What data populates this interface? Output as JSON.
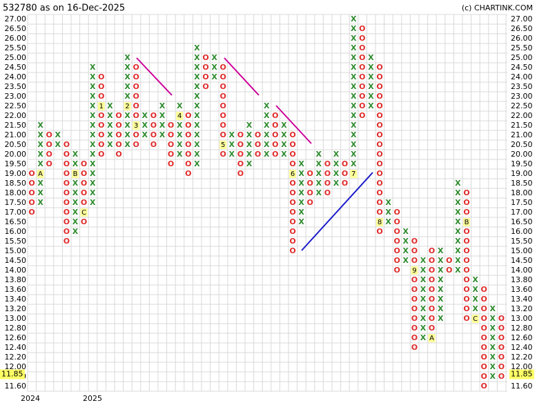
{
  "chart_data": {
    "type": "point-and-figure",
    "title": "532780 as on 16-Dec-2025",
    "credit": "(c) CHARTINK.COM",
    "x_labels": [
      "2024",
      "2025"
    ],
    "last_price": {
      "value": 11.85,
      "label": "11.85"
    },
    "yticks": [
      {
        "value": 27,
        "label": "27.00"
      },
      {
        "value": 26.5,
        "label": "26.50"
      },
      {
        "value": 26,
        "label": "26.00"
      },
      {
        "value": 25.5,
        "label": "25.50"
      },
      {
        "value": 25,
        "label": "25.00"
      },
      {
        "value": 24.5,
        "label": "24.50"
      },
      {
        "value": 24,
        "label": "24.00"
      },
      {
        "value": 23.5,
        "label": "23.50"
      },
      {
        "value": 23,
        "label": "23.00"
      },
      {
        "value": 22.5,
        "label": "22.50"
      },
      {
        "value": 22,
        "label": "22.00"
      },
      {
        "value": 21.5,
        "label": "21.50"
      },
      {
        "value": 21,
        "label": "21.00"
      },
      {
        "value": 20.5,
        "label": "20.50"
      },
      {
        "value": 20,
        "label": "20.00"
      },
      {
        "value": 19.5,
        "label": "19.50"
      },
      {
        "value": 19,
        "label": "19.00"
      },
      {
        "value": 18.5,
        "label": "18.50"
      },
      {
        "value": 18,
        "label": "18.00"
      },
      {
        "value": 17.5,
        "label": "17.50"
      },
      {
        "value": 17,
        "label": "17.00"
      },
      {
        "value": 16.5,
        "label": "16.50"
      },
      {
        "value": 16,
        "label": "16.00"
      },
      {
        "value": 15.5,
        "label": "15.50"
      },
      {
        "value": 15,
        "label": "15.00"
      },
      {
        "value": 14.5,
        "label": "14.50"
      },
      {
        "value": 14,
        "label": "14.00"
      },
      {
        "value": 13.8,
        "label": "13.80"
      },
      {
        "value": 13.6,
        "label": "13.60"
      },
      {
        "value": 13.4,
        "label": "13.40"
      },
      {
        "value": 13.2,
        "label": "13.20"
      },
      {
        "value": 13,
        "label": "13.00"
      },
      {
        "value": 12.8,
        "label": "12.80"
      },
      {
        "value": 12.6,
        "label": "12.60"
      },
      {
        "value": 12.4,
        "label": "12.40"
      },
      {
        "value": 12.2,
        "label": "12.20"
      },
      {
        "value": 12,
        "label": "12.00"
      },
      {
        "value": 11.8,
        "label": "11.80"
      },
      {
        "value": 11.6,
        "label": "11.60"
      }
    ],
    "x_color": "#2e8b2e",
    "o_color": "#e02a2a",
    "columns": [
      {
        "type": "O",
        "top": 19,
        "bottom": 17
      },
      {
        "type": "X",
        "top": 21.5,
        "bottom": 17.5,
        "marker": {
          "label": "A",
          "value": 19
        }
      },
      {
        "type": "O",
        "top": 21,
        "bottom": 19.5
      },
      {
        "type": "X",
        "top": 21,
        "bottom": 20.5
      },
      {
        "type": "O",
        "top": 20.5,
        "bottom": 15.5
      },
      {
        "type": "X",
        "top": 20,
        "bottom": 16,
        "marker": {
          "label": "B",
          "value": 19
        }
      },
      {
        "type": "O",
        "top": 19.5,
        "bottom": 16.5,
        "marker": {
          "label": "C",
          "value": 17
        }
      },
      {
        "type": "X",
        "top": 24.5,
        "bottom": 17.5
      },
      {
        "type": "O",
        "top": 24,
        "bottom": 20,
        "marker": {
          "label": "1",
          "value": 22.5
        }
      },
      {
        "type": "X",
        "top": 22.5,
        "bottom": 20.5
      },
      {
        "type": "O",
        "top": 22,
        "bottom": 20
      },
      {
        "type": "X",
        "top": 25,
        "bottom": 20.5,
        "marker": {
          "label": "2",
          "value": 22.5
        }
      },
      {
        "type": "O",
        "top": 24.5,
        "bottom": 20.5,
        "marker": {
          "label": "3",
          "value": 21.5
        }
      },
      {
        "type": "X",
        "top": 22,
        "bottom": 21
      },
      {
        "type": "O",
        "top": 22,
        "bottom": 20.5
      },
      {
        "type": "X",
        "top": 22.5,
        "bottom": 21
      },
      {
        "type": "O",
        "top": 21.5,
        "bottom": 19.5
      },
      {
        "type": "X",
        "top": 22.5,
        "bottom": 20,
        "marker": {
          "label": "4",
          "value": 22
        }
      },
      {
        "type": "O",
        "top": 22,
        "bottom": 19
      },
      {
        "type": "X",
        "top": 25.5,
        "bottom": 19.5
      },
      {
        "type": "O",
        "top": 25,
        "bottom": 23.5
      },
      {
        "type": "X",
        "top": 25,
        "bottom": 24
      },
      {
        "type": "O",
        "top": 24.5,
        "bottom": 20,
        "marker": {
          "label": "5",
          "value": 20.5
        }
      },
      {
        "type": "X",
        "top": 21,
        "bottom": 20
      },
      {
        "type": "O",
        "top": 21,
        "bottom": 19
      },
      {
        "type": "X",
        "top": 21.5,
        "bottom": 19.5
      },
      {
        "type": "O",
        "top": 21,
        "bottom": 20
      },
      {
        "type": "X",
        "top": 22.5,
        "bottom": 20
      },
      {
        "type": "O",
        "top": 22,
        "bottom": 20
      },
      {
        "type": "X",
        "top": 21.5,
        "bottom": 20
      },
      {
        "type": "O",
        "top": 21,
        "bottom": 15,
        "marker": {
          "label": "6",
          "value": 19
        }
      },
      {
        "type": "X",
        "top": 19.5,
        "bottom": 16.5
      },
      {
        "type": "O",
        "top": 19,
        "bottom": 17.5
      },
      {
        "type": "X",
        "top": 20,
        "bottom": 18
      },
      {
        "type": "O",
        "top": 19.5,
        "bottom": 18
      },
      {
        "type": "X",
        "top": 20,
        "bottom": 18.5
      },
      {
        "type": "O",
        "top": 19.5,
        "bottom": 18.5
      },
      {
        "type": "X",
        "top": 27,
        "bottom": 19,
        "marker": {
          "label": "7",
          "value": 19
        }
      },
      {
        "type": "O",
        "top": 26.5,
        "bottom": 22
      },
      {
        "type": "X",
        "top": 25,
        "bottom": 22.5
      },
      {
        "type": "O",
        "top": 24.5,
        "bottom": 16,
        "marker": {
          "label": "8",
          "value": 16.5
        }
      },
      {
        "type": "X",
        "top": 17.5,
        "bottom": 16.5
      },
      {
        "type": "O",
        "top": 17,
        "bottom": 14
      },
      {
        "type": "X",
        "top": 16,
        "bottom": 14.5
      },
      {
        "type": "O",
        "top": 15.5,
        "bottom": 12.4,
        "marker": {
          "label": "9",
          "value": 14
        }
      },
      {
        "type": "X",
        "top": 14.5,
        "bottom": 12.6
      },
      {
        "type": "O",
        "top": 15,
        "bottom": 12.6,
        "marker": {
          "label": "A",
          "value": 12.6
        }
      },
      {
        "type": "X",
        "top": 15,
        "bottom": 13
      },
      {
        "type": "O",
        "top": 14.5,
        "bottom": 14
      },
      {
        "type": "X",
        "top": 18.5,
        "bottom": 14
      },
      {
        "type": "O",
        "top": 18,
        "bottom": 13,
        "marker": {
          "label": "B",
          "value": 16.5
        }
      },
      {
        "type": "X",
        "top": 13.8,
        "bottom": 13,
        "marker": {
          "label": "C",
          "value": 13
        }
      },
      {
        "type": "O",
        "top": 13.6,
        "bottom": 11.6
      },
      {
        "type": "X",
        "top": 13.2,
        "bottom": 11.8
      },
      {
        "type": "O",
        "top": 13,
        "bottom": 11.8
      }
    ]
  }
}
